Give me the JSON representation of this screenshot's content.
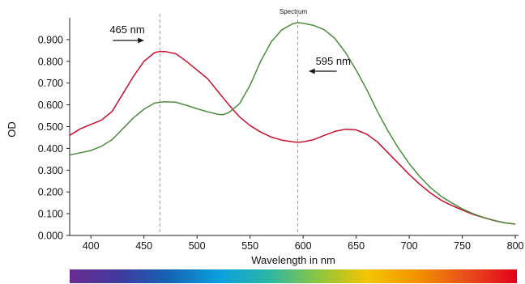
{
  "chart_data": {
    "type": "line",
    "title": "Spectrum",
    "xlabel": "Wavelength in nm",
    "ylabel": "OD",
    "xlim": [
      380,
      803
    ],
    "ylim": [
      0,
      1.0
    ],
    "x_ticks": [
      400,
      450,
      500,
      550,
      600,
      650,
      700,
      750,
      800
    ],
    "y_ticks": [
      "0.000",
      "0.100",
      "0.200",
      "0.300",
      "0.400",
      "0.500",
      "0.600",
      "0.700",
      "0.800",
      "0.900"
    ],
    "grid": false,
    "series": [
      {
        "color": "#c8102e",
        "points": [
          [
            380,
            0.46
          ],
          [
            390,
            0.49
          ],
          [
            400,
            0.51
          ],
          [
            410,
            0.53
          ],
          [
            420,
            0.57
          ],
          [
            430,
            0.65
          ],
          [
            440,
            0.73
          ],
          [
            450,
            0.8
          ],
          [
            460,
            0.84
          ],
          [
            465,
            0.845
          ],
          [
            470,
            0.845
          ],
          [
            480,
            0.835
          ],
          [
            490,
            0.8
          ],
          [
            500,
            0.76
          ],
          [
            510,
            0.72
          ],
          [
            520,
            0.66
          ],
          [
            530,
            0.6
          ],
          [
            540,
            0.545
          ],
          [
            550,
            0.505
          ],
          [
            560,
            0.475
          ],
          [
            570,
            0.452
          ],
          [
            580,
            0.438
          ],
          [
            590,
            0.43
          ],
          [
            595,
            0.428
          ],
          [
            600,
            0.43
          ],
          [
            610,
            0.44
          ],
          [
            620,
            0.46
          ],
          [
            630,
            0.478
          ],
          [
            640,
            0.488
          ],
          [
            650,
            0.485
          ],
          [
            660,
            0.465
          ],
          [
            670,
            0.43
          ],
          [
            680,
            0.38
          ],
          [
            690,
            0.33
          ],
          [
            700,
            0.28
          ],
          [
            710,
            0.235
          ],
          [
            720,
            0.195
          ],
          [
            730,
            0.162
          ],
          [
            740,
            0.138
          ],
          [
            750,
            0.117
          ],
          [
            760,
            0.097
          ],
          [
            770,
            0.082
          ],
          [
            780,
            0.068
          ],
          [
            790,
            0.058
          ],
          [
            800,
            0.052
          ]
        ]
      },
      {
        "color": "#4c8c3c",
        "points": [
          [
            380,
            0.37
          ],
          [
            390,
            0.38
          ],
          [
            400,
            0.39
          ],
          [
            410,
            0.41
          ],
          [
            420,
            0.44
          ],
          [
            430,
            0.49
          ],
          [
            440,
            0.54
          ],
          [
            450,
            0.58
          ],
          [
            460,
            0.608
          ],
          [
            465,
            0.612
          ],
          [
            470,
            0.614
          ],
          [
            480,
            0.612
          ],
          [
            490,
            0.598
          ],
          [
            500,
            0.582
          ],
          [
            510,
            0.568
          ],
          [
            520,
            0.556
          ],
          [
            525,
            0.555
          ],
          [
            530,
            0.565
          ],
          [
            540,
            0.605
          ],
          [
            550,
            0.69
          ],
          [
            560,
            0.8
          ],
          [
            570,
            0.89
          ],
          [
            580,
            0.945
          ],
          [
            590,
            0.972
          ],
          [
            595,
            0.978
          ],
          [
            600,
            0.975
          ],
          [
            610,
            0.965
          ],
          [
            620,
            0.945
          ],
          [
            630,
            0.905
          ],
          [
            640,
            0.84
          ],
          [
            650,
            0.76
          ],
          [
            660,
            0.67
          ],
          [
            670,
            0.57
          ],
          [
            680,
            0.48
          ],
          [
            690,
            0.4
          ],
          [
            700,
            0.33
          ],
          [
            710,
            0.27
          ],
          [
            720,
            0.22
          ],
          [
            730,
            0.18
          ],
          [
            740,
            0.15
          ],
          [
            750,
            0.122
          ],
          [
            760,
            0.1
          ],
          [
            770,
            0.083
          ],
          [
            780,
            0.069
          ],
          [
            790,
            0.058
          ],
          [
            800,
            0.052
          ]
        ]
      }
    ],
    "annotations": [
      {
        "text": "465 nm",
        "x": 465,
        "direction": "right"
      },
      {
        "text": "595 nm",
        "x": 595,
        "direction": "left"
      }
    ],
    "colorbar": [
      "#6a2c91",
      "#3f3aa0",
      "#1464b4",
      "#0aa0e0",
      "#2bb6a6",
      "#8cc63f",
      "#f5c400",
      "#f39200",
      "#e84e1b",
      "#e3001b"
    ]
  }
}
